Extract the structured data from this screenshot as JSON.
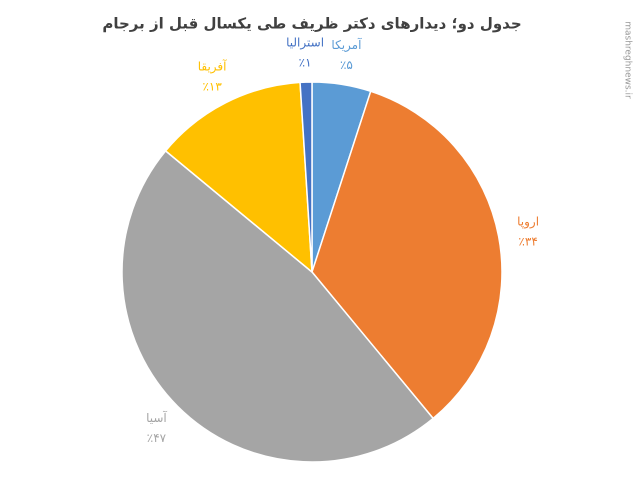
{
  "chart_data": {
    "type": "pie",
    "title": "جدول دو؛ دیدارهای دکتر ظریف طی یکسال قبل از برجام",
    "categories": [
      "آمریکا",
      "اروپا",
      "آسیا",
      "آفریقا",
      "استرالیا"
    ],
    "values": [
      5,
      34,
      47,
      13,
      1
    ],
    "value_labels": [
      "٪۵",
      "٪۳۴",
      "٪۴۷",
      "٪۱۳",
      "٪۱"
    ],
    "colors": [
      "#5b9bd5",
      "#ed7d31",
      "#a5a5a5",
      "#ffc000",
      "#4472c4"
    ],
    "watermark": "mashreghnews.ir"
  }
}
